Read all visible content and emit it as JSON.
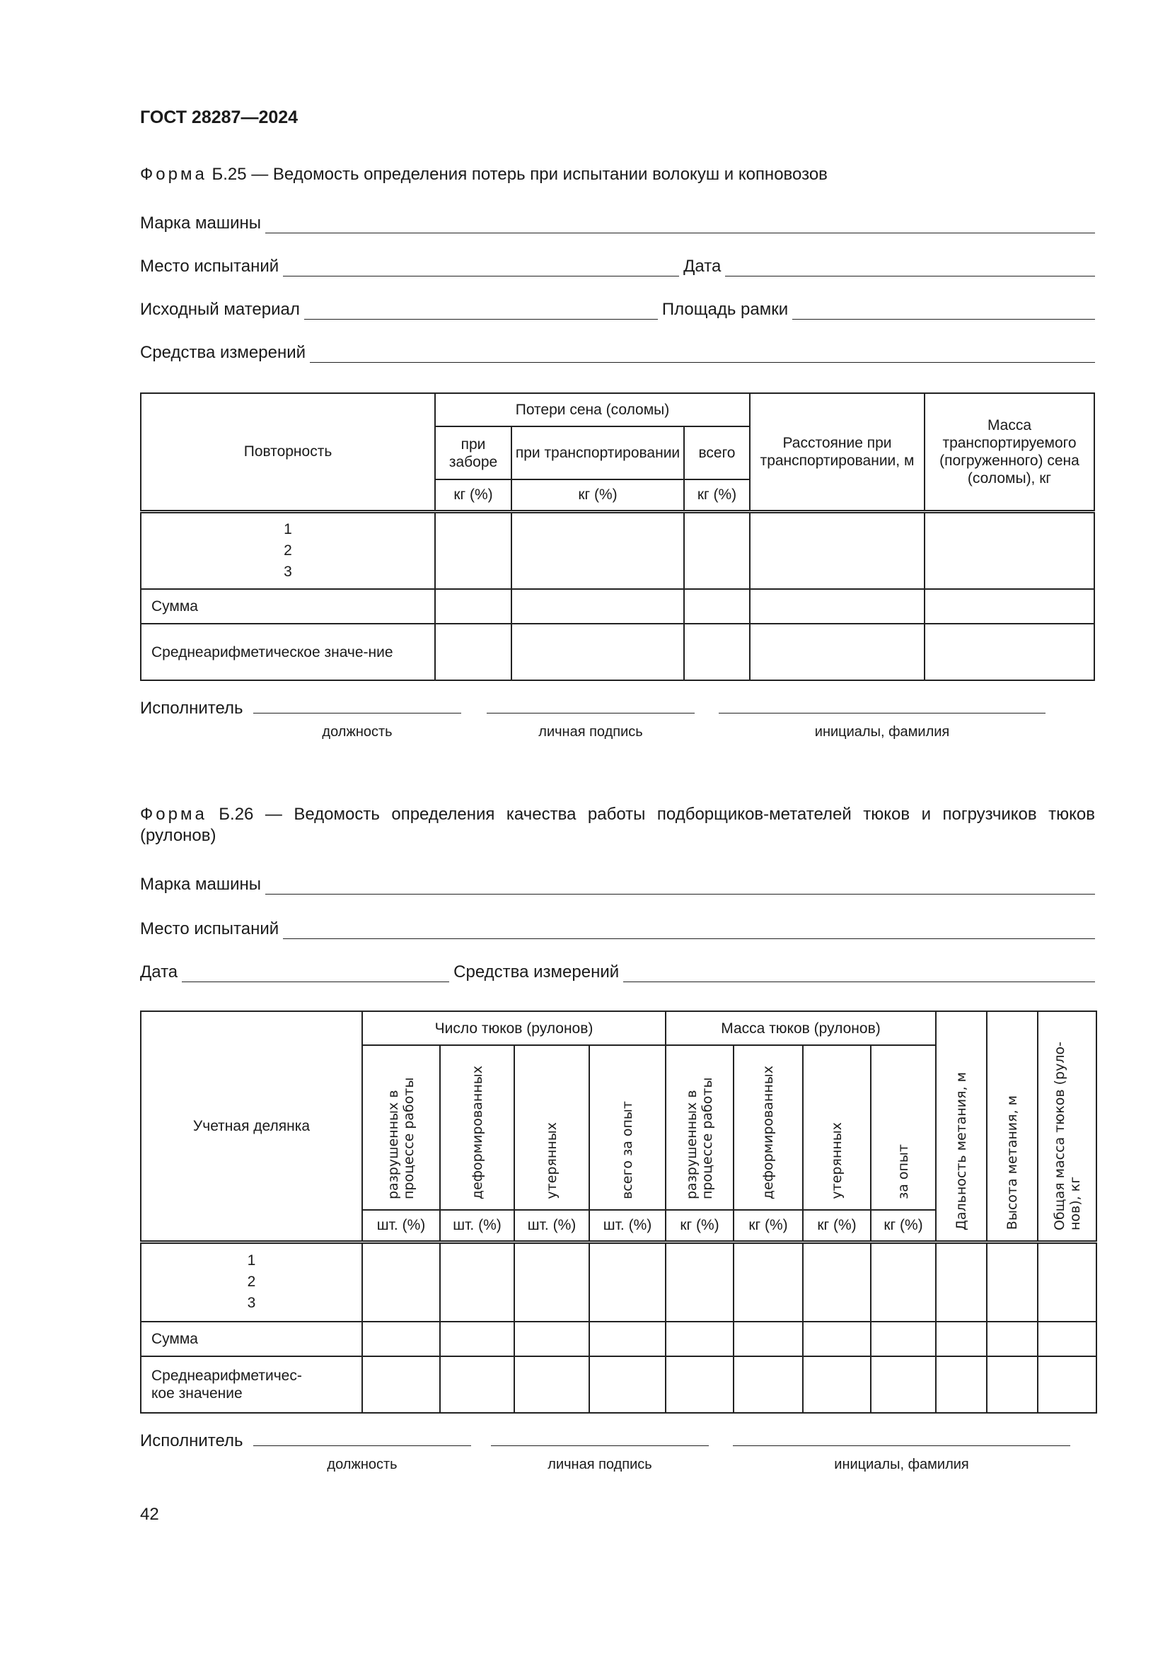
{
  "header": {
    "title": "ГОСТ 28287—2024"
  },
  "form25": {
    "prefix": "Форма",
    "caption": "Б.25 — Ведомость определения потерь при испытании волокуш и копновозов",
    "fields": {
      "machine": "Марка машины",
      "place": "Место испытаний",
      "date": "Дата",
      "material": "Исходный материал",
      "frame": "Площадь рамки",
      "instruments": "Средства измерений"
    },
    "table": {
      "col_repeat": "Повторность",
      "group_losses": "Потери сена (соломы)",
      "sub": [
        "при заборе",
        "при транспортировании",
        "всего"
      ],
      "units": [
        "кг (%)",
        "кг (%)",
        "кг (%)"
      ],
      "col_distance": "Расстояние при транспортировании, м",
      "col_mass": "Масса транспортируемого (погруженного) сена (соломы), кг",
      "rows": [
        "1",
        "2",
        "3"
      ],
      "sum": "Сумма",
      "avg": "Среднеарифметическое значе-ние"
    },
    "signature": {
      "label": "Исполнитель",
      "captions": [
        "должность",
        "личная подпись",
        "инициалы, фамилия"
      ]
    }
  },
  "form26": {
    "prefix": "Форма",
    "caption": "Б.26 — Ведомость определения качества работы подборщиков-метателей тюков и погрузчиков тюков (рулонов)",
    "fields": {
      "machine": "Марка машины",
      "place": "Место испытаний",
      "date": "Дата",
      "instruments": "Средства измерений"
    },
    "table": {
      "col_plot": "Учетная делянка",
      "group_count": "Число тюков (рулонов)",
      "group_mass": "Масса тюков (рулонов)",
      "count_sub": [
        "разрушенных в процессе работы",
        "деформированных",
        "утерянных",
        "всего за опыт"
      ],
      "mass_sub": [
        "разрушенных в процессе работы",
        "деформированных",
        "утерянных",
        "за опыт"
      ],
      "count_units": [
        "шт. (%)",
        "шт. (%)",
        "шт. (%)",
        "шт. (%)"
      ],
      "mass_units": [
        "кг (%)",
        "кг (%)",
        "кг (%)",
        "кг (%)"
      ],
      "col_range": "Дальность метания, м",
      "col_height": "Высота метания, м",
      "col_total": "Общая масса тюков (руло-нов), кг",
      "rows": [
        "1",
        "2",
        "3"
      ],
      "sum": "Сумма",
      "avg": "Среднеарифметичес-кое значение"
    },
    "signature": {
      "label": "Исполнитель",
      "captions": [
        "должность",
        "личная подпись",
        "инициалы, фамилия"
      ]
    }
  },
  "footer": {
    "page_number": "42"
  }
}
